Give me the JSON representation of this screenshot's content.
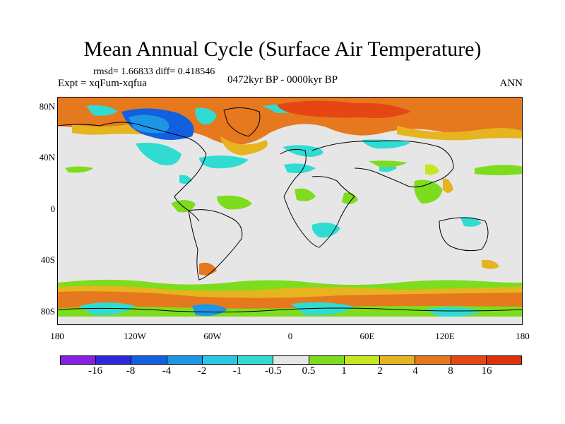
{
  "title": "Mean Annual Cycle (Surface Air Temperature)",
  "stats": "rmsd= 1.66833 diff= 0.418546",
  "experiment": "Expt = xqFum-xqfua",
  "period": "0472kyr BP - 0000kyr BP",
  "season": "ANN",
  "axes": {
    "lat_labels": [
      "80N",
      "40N",
      "0",
      "40S",
      "80S"
    ],
    "lon_labels": [
      "180",
      "120W",
      "60W",
      "0",
      "60E",
      "120E",
      "180"
    ]
  },
  "colorbar": {
    "labels": [
      "-16",
      "-8",
      "-4",
      "-2",
      "-1",
      "-0.5",
      "0.5",
      "1",
      "2",
      "4",
      "8",
      "16"
    ],
    "colors": [
      "#8a1ee6",
      "#2a2adc",
      "#1060e0",
      "#1e96e6",
      "#2ac8e6",
      "#30dcd2",
      "#e6e6e6",
      "#7ddc1e",
      "#c8e61e",
      "#e6b41e",
      "#e6781e",
      "#e64614",
      "#e0300a"
    ]
  },
  "colors": {
    "land_neutral": "#e6e6e6",
    "warm_orange": "#e6781e",
    "warm_yellow": "#e6b41e",
    "warm_green": "#7ddc1e",
    "cool_cyan": "#30dcd2",
    "cool_blue": "#1e96e6",
    "cold_blue": "#1060e0",
    "hot_red": "#e64614"
  }
}
